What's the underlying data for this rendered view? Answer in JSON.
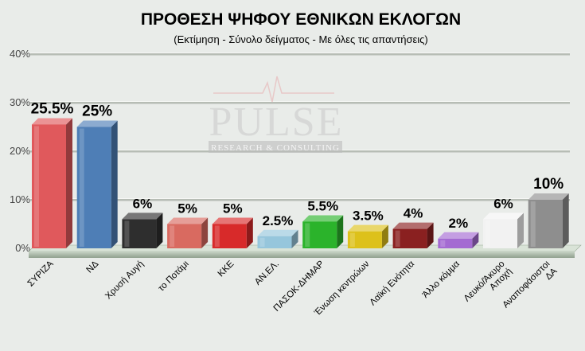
{
  "chart_data": {
    "type": "bar",
    "title": "ΠΡΟΘΕΣΗ ΨΗΦΟΥ ΕΘΝΙΚΩΝ ΕΚΛΟΓΩΝ",
    "subtitle": "(Εκτίμηση - Σύνολο δείγματος - Με όλες τις απαντήσεις)",
    "categories": [
      "ΣΥΡΙΖΑ",
      "ΝΔ",
      "Χρυσή Αυγή",
      "το Ποτάμι",
      "ΚΚΕ",
      "ΑΝ.ΕΛ.",
      "ΠΑΣΟΚ-ΔΗΜΑΡ",
      "Ένωση κεντρώων",
      "Λαϊκή Ενότητα",
      "Άλλο κόμμα",
      "Λευκό/Άκυρο Αποχή",
      "Αναποφάσιστοι ΔΑ"
    ],
    "values": [
      25.5,
      25,
      6,
      5,
      5,
      2.5,
      5.5,
      3.5,
      4,
      2,
      6,
      10
    ],
    "value_labels": [
      "25.5%",
      "25%",
      "6%",
      "5%",
      "5%",
      "2.5%",
      "5.5%",
      "3.5%",
      "4%",
      "2%",
      "6%",
      "10%"
    ],
    "colors": [
      "#e0595c",
      "#4e7eb6",
      "#2e2e2e",
      "#d96a60",
      "#d82a2a",
      "#96c6dc",
      "#2bb32b",
      "#ddc11a",
      "#8a2020",
      "#a46ad2",
      "#f2f2f2",
      "#8e8e8e"
    ],
    "yticks": [
      "0%",
      "10%",
      "20%",
      "30%",
      "40%"
    ],
    "ylim": [
      0,
      40
    ],
    "grid": true,
    "xlabel": "",
    "ylabel": ""
  },
  "watermark": {
    "brand": "PULSE",
    "tagline": "RESEARCH & CONSULTING"
  }
}
